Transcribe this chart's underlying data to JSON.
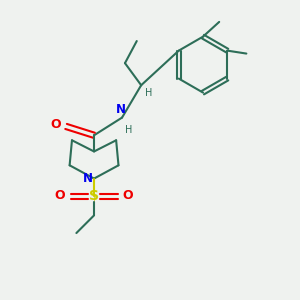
{
  "bg_color": "#eff2ef",
  "bond_color": "#2d6e58",
  "n_color": "#0000ee",
  "o_color": "#ee0000",
  "s_color": "#cccc00",
  "line_width": 1.5,
  "figsize": [
    3.0,
    3.0
  ],
  "dpi": 100,
  "xlim": [
    0,
    10
  ],
  "ylim": [
    0,
    10
  ]
}
